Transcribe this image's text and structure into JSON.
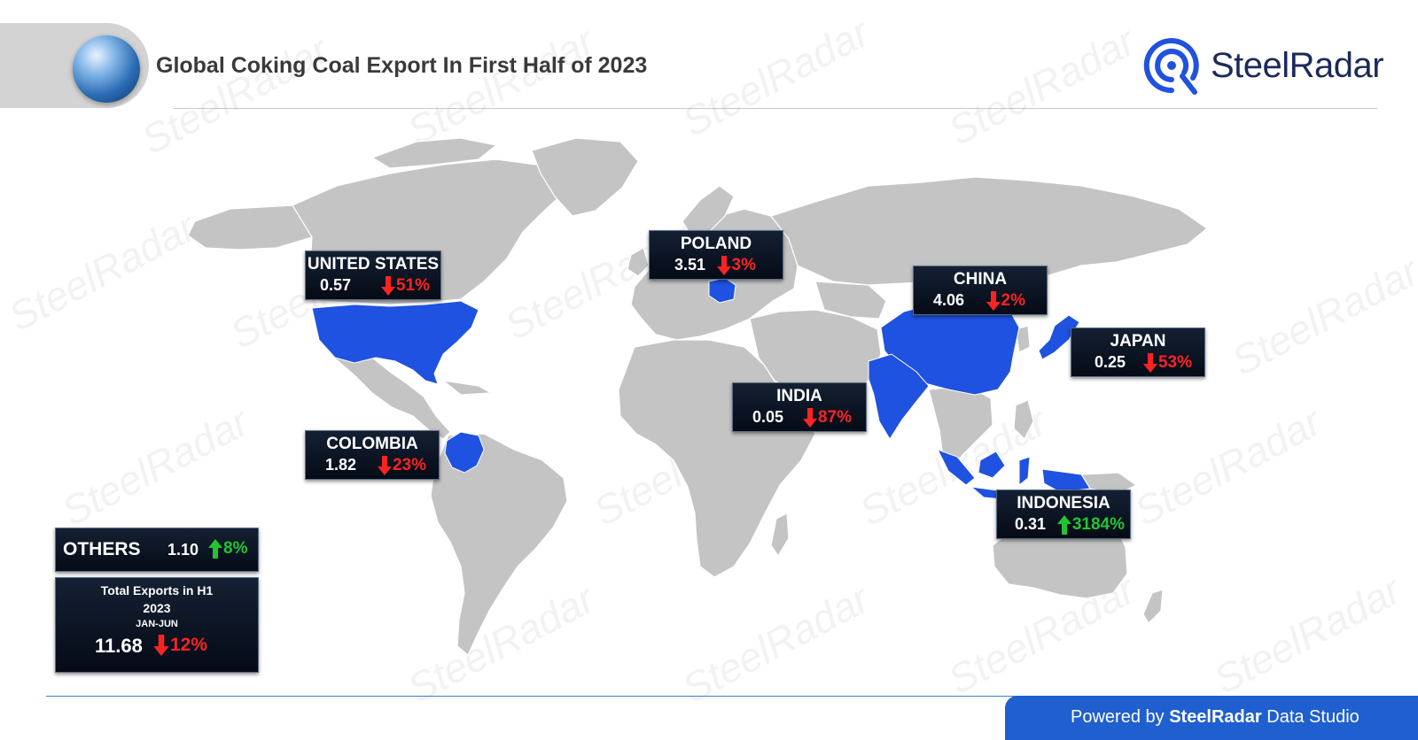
{
  "header": {
    "title": "Global Coking Coal Export In First Half of 2023",
    "brand": "SteelRadar"
  },
  "watermark_text": "SteelRadar",
  "colors": {
    "highlight_country": "#1f52e0",
    "land": "#c4c4c4",
    "card_bg": "#0a1322",
    "decrease": "#ff2222",
    "increase": "#22c531",
    "footer_band": "#1f5fcf"
  },
  "countries": [
    {
      "name": "UNITED STATES",
      "value": "0.57",
      "change": "51%",
      "direction": "down"
    },
    {
      "name": "POLAND",
      "value": "3.51",
      "change": "3%",
      "direction": "down"
    },
    {
      "name": "CHINA",
      "value": "4.06",
      "change": "2%",
      "direction": "down"
    },
    {
      "name": "JAPAN",
      "value": "0.25",
      "change": "53%",
      "direction": "down"
    },
    {
      "name": "INDIA",
      "value": "0.05",
      "change": "87%",
      "direction": "down"
    },
    {
      "name": "COLOMBIA",
      "value": "1.82",
      "change": "23%",
      "direction": "down"
    },
    {
      "name": "INDONESIA",
      "value": "0.31",
      "change": "3184%",
      "direction": "up"
    }
  ],
  "others": {
    "name": "OTHERS",
    "value": "1.10",
    "change": "8%",
    "direction": "up"
  },
  "total": {
    "line1": "Total Exports in H1",
    "line2": "2023",
    "line3": "JAN-JUN",
    "value": "11.68",
    "change": "12%",
    "direction": "down"
  },
  "footer": {
    "prefix": "Powered by",
    "brand": "SteelRadar",
    "suffix": "Data Studio"
  }
}
